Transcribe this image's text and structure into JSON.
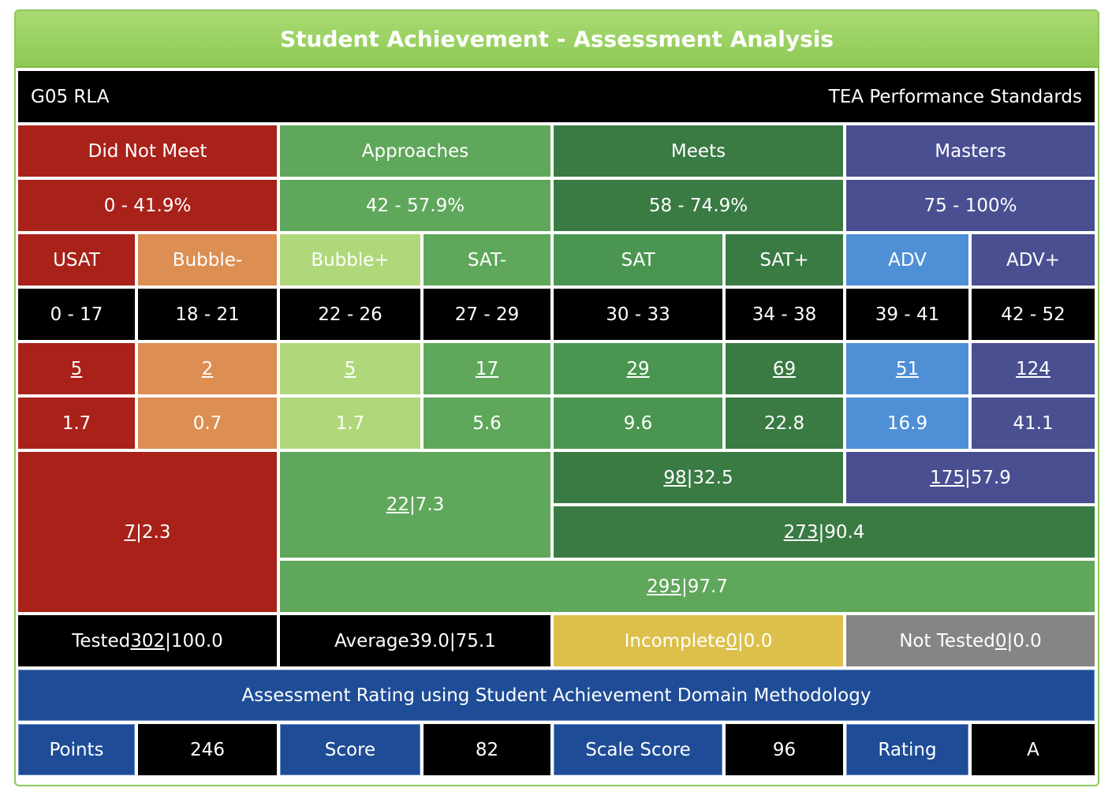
{
  "title": "Student Achievement - Assessment Analysis",
  "separator": "|",
  "subject": "G05 RLA",
  "standards": "TEA Performance Standards",
  "levels": [
    {
      "name": "Did Not Meet",
      "range": "0 - 41.9%"
    },
    {
      "name": "Approaches",
      "range": "42 - 57.9%"
    },
    {
      "name": "Meets",
      "range": "58 - 74.9%"
    },
    {
      "name": "Masters",
      "range": "75 - 100%"
    }
  ],
  "bands": [
    {
      "name": "USAT",
      "range": "0 - 17",
      "count": "5",
      "percent": "1.7"
    },
    {
      "name": "Bubble-",
      "range": "18 - 21",
      "count": "2",
      "percent": "0.7"
    },
    {
      "name": "Bubble+",
      "range": "22 - 26",
      "count": "5",
      "percent": "1.7"
    },
    {
      "name": "SAT-",
      "range": "27 - 29",
      "count": "17",
      "percent": "5.6"
    },
    {
      "name": "SAT",
      "range": "30 - 33",
      "count": "29",
      "percent": "9.6"
    },
    {
      "name": "SAT+",
      "range": "34 - 38",
      "count": "69",
      "percent": "22.8"
    },
    {
      "name": "ADV",
      "range": "39 - 41",
      "count": "51",
      "percent": "16.9"
    },
    {
      "name": "ADV+",
      "range": "42 - 52",
      "count": "124",
      "percent": "41.1"
    }
  ],
  "totals": [
    {
      "count": "7",
      "percent": "2.3"
    },
    {
      "count": "22",
      "percent": "7.3"
    },
    {
      "count": "98",
      "percent": "32.5"
    },
    {
      "count": "175",
      "percent": "57.9"
    },
    {
      "count": "273",
      "percent": "90.4"
    },
    {
      "count": "295",
      "percent": "97.7"
    }
  ],
  "summary": [
    {
      "label": "Tested",
      "count": "302",
      "percent": "100.0"
    },
    {
      "label": "Average",
      "count": "39.0",
      "percent": "75.1"
    },
    {
      "label": "Incomplete",
      "count": "0",
      "percent": "0.0"
    },
    {
      "label": "Not Tested",
      "count": "0",
      "percent": "0.0"
    }
  ],
  "rating": {
    "title": "Assessment Rating using Student Achievement Domain Methodology",
    "items": [
      {
        "label": "Points",
        "value": "246"
      },
      {
        "label": "Score",
        "value": "82"
      },
      {
        "label": "Scale Score",
        "value": "96"
      },
      {
        "label": "Rating",
        "value": "A"
      }
    ]
  }
}
